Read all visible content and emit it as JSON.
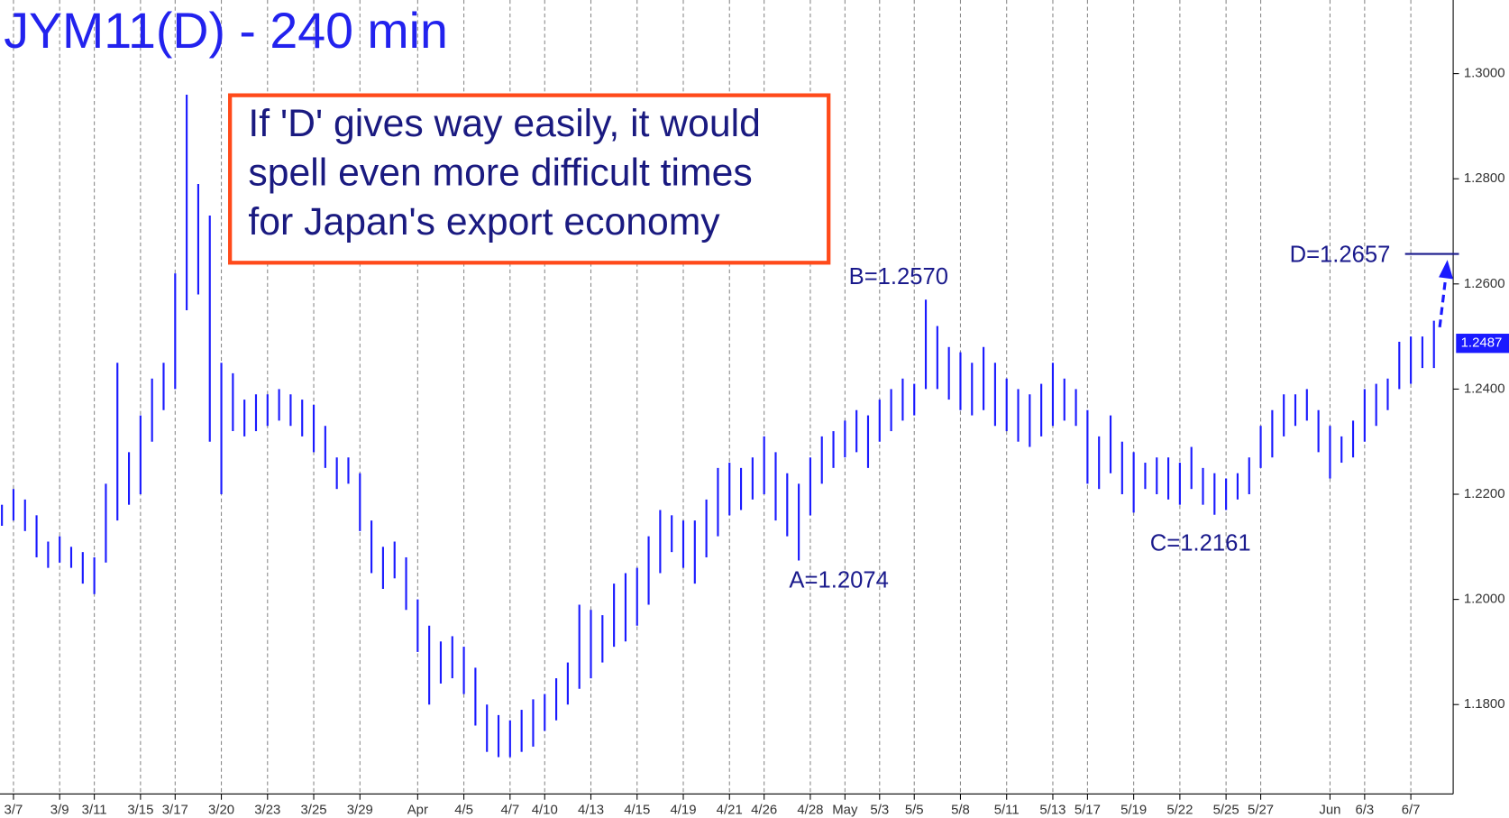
{
  "chart_data": {
    "type": "ohlc",
    "title": "JYM11(D) - 240 min",
    "color": "#1a1aff",
    "high": [
      1.218,
      1.221,
      1.219,
      1.216,
      1.211,
      1.212,
      1.21,
      1.209,
      1.208,
      1.222,
      1.245,
      1.228,
      1.235,
      1.242,
      1.245,
      1.262,
      1.296,
      1.279,
      1.273,
      1.245,
      1.243,
      1.238,
      1.239,
      1.239,
      1.24,
      1.239,
      1.238,
      1.237,
      1.233,
      1.227,
      1.227,
      1.224,
      1.215,
      1.21,
      1.211,
      1.208,
      1.2,
      1.195,
      1.192,
      1.193,
      1.191,
      1.187,
      1.18,
      1.178,
      1.177,
      1.179,
      1.181,
      1.182,
      1.185,
      1.188,
      1.199,
      1.198,
      1.197,
      1.203,
      1.205,
      1.206,
      1.212,
      1.217,
      1.216,
      1.215,
      1.215,
      1.219,
      1.225,
      1.226,
      1.225,
      1.227,
      1.231,
      1.228,
      1.224,
      1.222,
      1.227,
      1.231,
      1.232,
      1.234,
      1.236,
      1.235,
      1.238,
      1.24,
      1.242,
      1.241,
      1.257,
      1.252,
      1.248,
      1.247,
      1.245,
      1.248,
      1.245,
      1.242,
      1.24,
      1.239,
      1.241,
      1.245,
      1.242,
      1.24,
      1.236,
      1.231,
      1.235,
      1.23,
      1.228,
      1.226,
      1.227,
      1.227,
      1.226,
      1.229,
      1.225,
      1.224,
      1.223,
      1.224,
      1.227,
      1.233,
      1.236,
      1.239,
      1.239,
      1.24,
      1.236,
      1.233,
      1.231,
      1.234,
      1.24,
      1.241,
      1.242,
      1.249,
      1.25,
      1.25,
      1.253
    ],
    "low": [
      1.214,
      1.215,
      1.213,
      1.208,
      1.206,
      1.207,
      1.206,
      1.203,
      1.201,
      1.207,
      1.215,
      1.218,
      1.22,
      1.23,
      1.236,
      1.24,
      1.255,
      1.258,
      1.23,
      1.22,
      1.232,
      1.231,
      1.232,
      1.233,
      1.234,
      1.233,
      1.231,
      1.228,
      1.225,
      1.221,
      1.222,
      1.213,
      1.205,
      1.202,
      1.204,
      1.198,
      1.19,
      1.18,
      1.184,
      1.185,
      1.182,
      1.176,
      1.171,
      1.17,
      1.17,
      1.171,
      1.172,
      1.175,
      1.177,
      1.18,
      1.183,
      1.185,
      1.188,
      1.191,
      1.192,
      1.195,
      1.199,
      1.205,
      1.209,
      1.206,
      1.203,
      1.208,
      1.212,
      1.216,
      1.217,
      1.219,
      1.22,
      1.215,
      1.212,
      1.2074,
      1.216,
      1.222,
      1.225,
      1.227,
      1.228,
      1.225,
      1.23,
      1.232,
      1.234,
      1.235,
      1.24,
      1.24,
      1.238,
      1.236,
      1.235,
      1.236,
      1.233,
      1.232,
      1.23,
      1.229,
      1.231,
      1.233,
      1.234,
      1.233,
      1.222,
      1.221,
      1.224,
      1.22,
      1.2165,
      1.221,
      1.22,
      1.219,
      1.218,
      1.221,
      1.218,
      1.2161,
      1.217,
      1.219,
      1.22,
      1.225,
      1.227,
      1.231,
      1.233,
      1.234,
      1.228,
      1.223,
      1.226,
      1.227,
      1.23,
      1.233,
      1.236,
      1.24,
      1.241,
      1.244,
      1.244
    ],
    "ylim": [
      1.163,
      1.314
    ],
    "yticks": [
      {
        "value": 1.18,
        "label": "1.1800"
      },
      {
        "value": 1.2,
        "label": "1.2000"
      },
      {
        "value": 1.22,
        "label": "1.2200"
      },
      {
        "value": 1.24,
        "label": "1.2400"
      },
      {
        "value": 1.26,
        "label": "1.2600"
      },
      {
        "value": 1.28,
        "label": "1.2800"
      },
      {
        "value": 1.3,
        "label": "1.3000"
      }
    ],
    "xlim": [
      -0.5,
      125.5
    ],
    "xticks": [
      {
        "value": 1,
        "label": "3/7"
      },
      {
        "value": 5,
        "label": "3/9"
      },
      {
        "value": 8,
        "label": "3/11"
      },
      {
        "value": 12,
        "label": "3/15"
      },
      {
        "value": 15,
        "label": "3/17"
      },
      {
        "value": 19,
        "label": "3/20"
      },
      {
        "value": 23,
        "label": "3/23"
      },
      {
        "value": 27,
        "label": "3/25"
      },
      {
        "value": 31,
        "label": "3/29"
      },
      {
        "value": 36,
        "label": "Apr"
      },
      {
        "value": 40,
        "label": "4/5"
      },
      {
        "value": 44,
        "label": "4/7"
      },
      {
        "value": 47,
        "label": "4/10"
      },
      {
        "value": 51,
        "label": "4/13"
      },
      {
        "value": 55,
        "label": "4/15"
      },
      {
        "value": 59,
        "label": "4/19"
      },
      {
        "value": 63,
        "label": "4/21"
      },
      {
        "value": 66,
        "label": "4/26"
      },
      {
        "value": 70,
        "label": "4/28"
      },
      {
        "value": 73,
        "label": "May"
      },
      {
        "value": 76,
        "label": "5/3"
      },
      {
        "value": 79,
        "label": "5/5"
      },
      {
        "value": 83,
        "label": "5/8"
      },
      {
        "value": 87,
        "label": "5/11"
      },
      {
        "value": 91,
        "label": "5/13"
      },
      {
        "value": 94,
        "label": "5/17"
      },
      {
        "value": 98,
        "label": "5/19"
      },
      {
        "value": 102,
        "label": "5/22"
      },
      {
        "value": 106,
        "label": "5/25"
      },
      {
        "value": 109,
        "label": "5/27"
      },
      {
        "value": 115,
        "label": "Jun"
      },
      {
        "value": 118,
        "label": "6/3"
      },
      {
        "value": 122,
        "label": "6/7"
      }
    ],
    "annotations": [
      "A=1.2074",
      "B=1.2570",
      "C=1.2161",
      "D=1.2657"
    ],
    "target": 1.2657,
    "last": {
      "value": 1.2487,
      "label": "1.2487"
    },
    "note": [
      "If 'D' gives way easily, it would",
      "spell even more difficult times",
      "for Japan's export economy"
    ]
  }
}
